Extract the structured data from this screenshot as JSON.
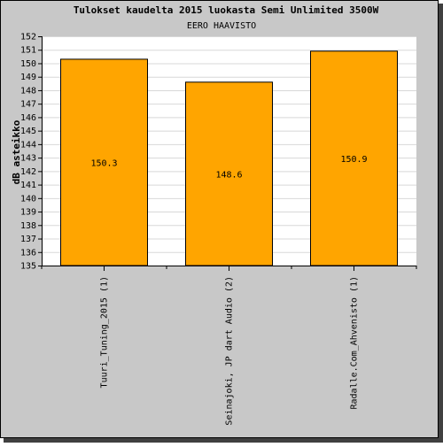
{
  "chart_data": {
    "type": "bar",
    "title": "Tulokset kaudelta 2015 luokasta Semi Unlimited 3500W",
    "subtitle": "EERO HAAVISTO",
    "xlabel": "",
    "ylabel": "dB asteikko",
    "ylim": [
      135,
      152
    ],
    "yticks": [
      135,
      136,
      137,
      138,
      139,
      140,
      141,
      142,
      143,
      144,
      145,
      146,
      147,
      148,
      149,
      150,
      151,
      152
    ],
    "grid": true,
    "categories": [
      "Tuuri_Tuning_2015 (1)",
      "Seinajoki, JP dart Audio (2)",
      "Radalle.Com_Ahvenisto (1)"
    ],
    "values": [
      150.3,
      148.6,
      150.9
    ],
    "data_labels": [
      "150.3",
      "148.6",
      "150.9"
    ],
    "colors": {
      "bar": "#ffa500",
      "bar_border": "#000000",
      "outer_background": "#c8c8c8",
      "plot_background": "#ffffff",
      "grid": "#d8d8d8"
    }
  }
}
